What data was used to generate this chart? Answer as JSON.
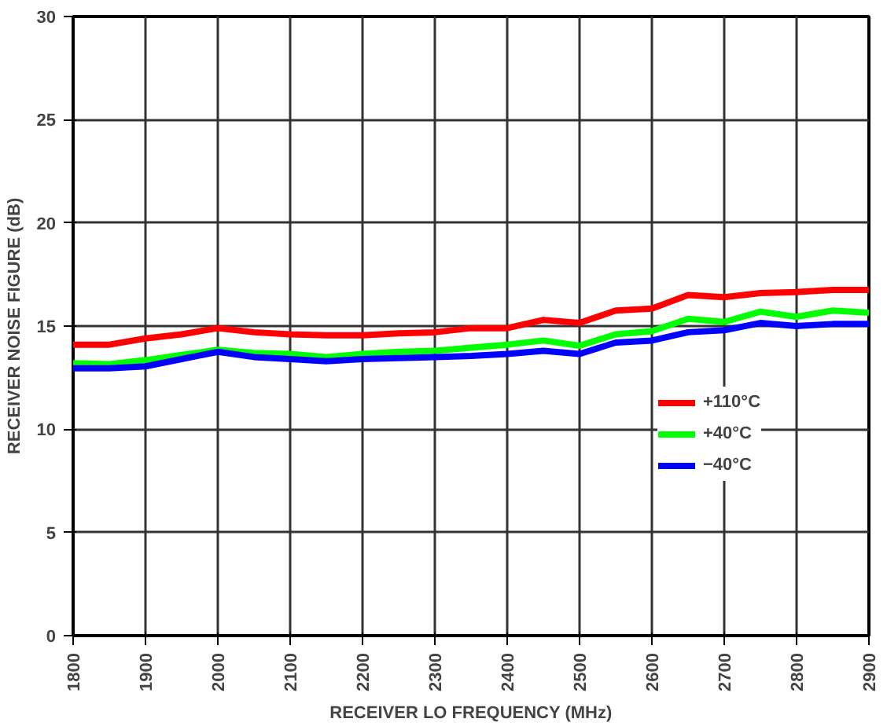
{
  "chart_data": {
    "type": "line",
    "xlabel": "RECEIVER LO FREQUENCY (MHz)",
    "ylabel": "RECEIVER NOISE FIGURE (dB)",
    "x": [
      1800,
      1850,
      1900,
      1950,
      2000,
      2050,
      2100,
      2150,
      2200,
      2250,
      2300,
      2350,
      2400,
      2450,
      2500,
      2550,
      2600,
      2650,
      2700,
      2750,
      2800,
      2850,
      2900
    ],
    "series": [
      {
        "name": "+110°C",
        "color": "#ff0000",
        "values": [
          14.1,
          14.1,
          14.4,
          14.6,
          14.9,
          14.7,
          14.6,
          14.55,
          14.55,
          14.65,
          14.7,
          14.9,
          14.9,
          15.3,
          15.15,
          15.75,
          15.85,
          16.5,
          16.4,
          16.6,
          16.65,
          16.75,
          16.75
        ]
      },
      {
        "name": "+40°C",
        "color": "#00ff00",
        "values": [
          13.2,
          13.15,
          13.35,
          13.6,
          13.85,
          13.7,
          13.65,
          13.5,
          13.65,
          13.75,
          13.8,
          13.95,
          14.1,
          14.3,
          14.05,
          14.6,
          14.75,
          15.35,
          15.2,
          15.7,
          15.45,
          15.75,
          15.65
        ]
      },
      {
        "name": "−40°C",
        "color": "#0000ff",
        "values": [
          12.95,
          12.95,
          13.05,
          13.4,
          13.75,
          13.5,
          13.4,
          13.3,
          13.4,
          13.45,
          13.5,
          13.55,
          13.65,
          13.8,
          13.65,
          14.2,
          14.3,
          14.7,
          14.8,
          15.15,
          15.0,
          15.1,
          15.1
        ]
      }
    ],
    "xlim": [
      1800,
      2900
    ],
    "xticks": [
      1800,
      1900,
      2000,
      2100,
      2200,
      2300,
      2400,
      2500,
      2600,
      2700,
      2800,
      2900
    ],
    "ylim": [
      0,
      30
    ],
    "yticks": [
      0,
      5,
      10,
      15,
      20,
      25,
      30
    ],
    "grid": true,
    "legend": "right",
    "marker": "none",
    "line_style": "solid"
  }
}
